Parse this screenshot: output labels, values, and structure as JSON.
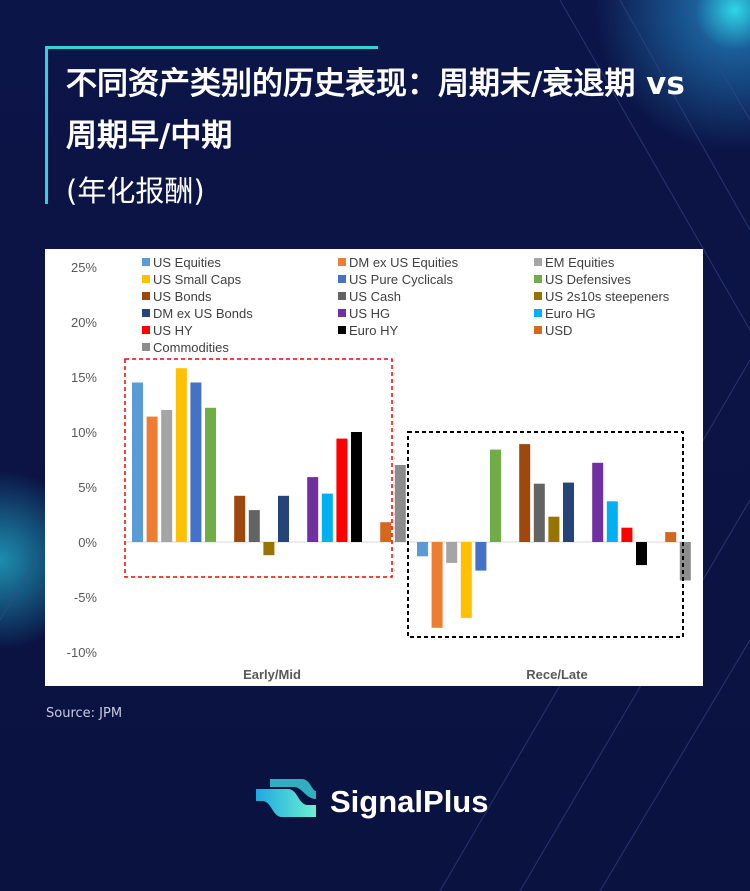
{
  "title": "不同资产类别的历史表现：周期末/衰退期 vs 周期早/中期",
  "subtitle": "(年化报酬)",
  "source": "Source: JPM",
  "brand": "SignalPlus",
  "chart_data": {
    "type": "bar",
    "categories": [
      "Early/Mid",
      "Rece/Late"
    ],
    "ylim": [
      -10,
      25
    ],
    "yticks": [
      "-10%",
      "-5%",
      "0%",
      "5%",
      "10%",
      "15%",
      "20%",
      "25%"
    ],
    "ytick_values": [
      -10,
      -5,
      0,
      5,
      10,
      15,
      20,
      25
    ],
    "legend_position": "top",
    "series": [
      {
        "name": "US Equities",
        "color": "#5b9bd5",
        "values": [
          14.5,
          -1.3
        ]
      },
      {
        "name": "DM ex US Equities",
        "color": "#ed7d31",
        "values": [
          11.4,
          -7.8
        ]
      },
      {
        "name": "EM Equities",
        "color": "#a5a5a5",
        "values": [
          12.0,
          -1.9
        ]
      },
      {
        "name": "US Small Caps",
        "color": "#ffc000",
        "values": [
          15.8,
          -6.9
        ]
      },
      {
        "name": "US Pure Cyclicals",
        "color": "#4472c4",
        "values": [
          14.5,
          -2.6
        ]
      },
      {
        "name": "US Defensives",
        "color": "#70ad47",
        "values": [
          12.2,
          8.4
        ]
      },
      {
        "name": "US Bonds",
        "color": "#9e480e",
        "values": [
          4.2,
          8.9
        ]
      },
      {
        "name": "US Cash",
        "color": "#636363",
        "values": [
          2.9,
          5.3
        ]
      },
      {
        "name": "US 2s10s steepeners",
        "color": "#997300",
        "values": [
          -1.2,
          2.3
        ]
      },
      {
        "name": "DM ex US Bonds",
        "color": "#264478",
        "values": [
          4.2,
          5.4
        ]
      },
      {
        "name": "US HG",
        "color": "#7030a0",
        "values": [
          5.9,
          7.2
        ]
      },
      {
        "name": "Euro HG",
        "color": "#00b0f0",
        "values": [
          4.4,
          3.7
        ]
      },
      {
        "name": "US HY",
        "color": "#ff0000",
        "values": [
          9.4,
          1.3
        ]
      },
      {
        "name": "Euro HY",
        "color": "#000000",
        "values": [
          10.0,
          -2.1
        ]
      },
      {
        "name": "USD",
        "color": "#d2691e",
        "values": [
          1.8,
          0.9
        ]
      },
      {
        "name": "Commodities",
        "color": "#8c8c8c",
        "values": [
          7.0,
          -3.5
        ]
      }
    ],
    "highlight_boxes": [
      {
        "category": "Early/Mid",
        "color": "#ff0000"
      },
      {
        "category": "Rece/Late",
        "color": "#000000"
      }
    ]
  }
}
